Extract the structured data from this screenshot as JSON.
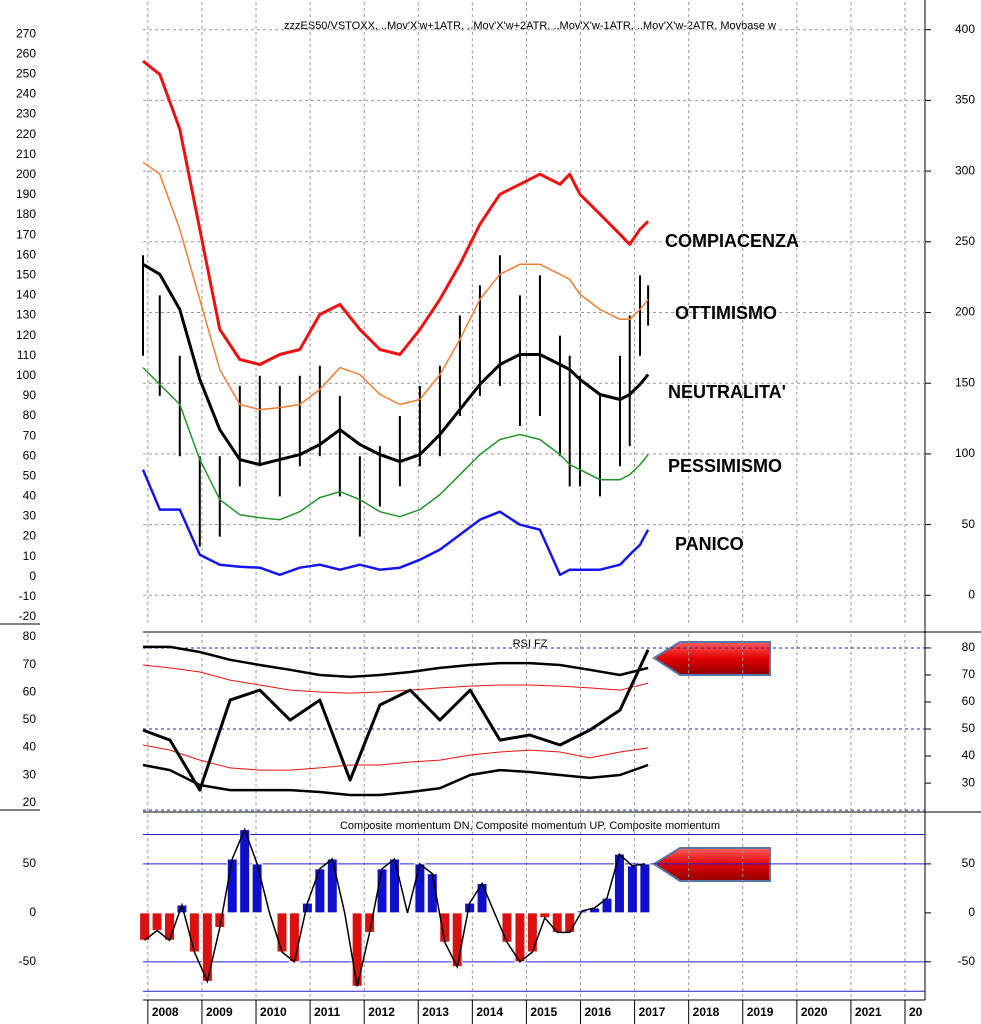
{
  "chart_data": [
    {
      "type": "line",
      "title": "zzzES50/VSTOXX, ..Mov'X'w+1ATR, ..Mov'X'w+2ATR, ..Mov'X'w-1ATR, ..Mov'X'w-2ATR, Movbase w",
      "x": [
        2007.91,
        2008.22,
        2008.59,
        2008.96,
        2009.33,
        2009.7,
        2010.07,
        2010.44,
        2010.81,
        2011.18,
        2011.55,
        2011.92,
        2012.29,
        2012.66,
        2013.03,
        2013.4,
        2013.77,
        2014.14,
        2014.51,
        2014.88,
        2015.25,
        2015.62,
        2015.8,
        2015.99,
        2016.36,
        2016.73,
        2016.91,
        2017.1,
        2017.25
      ],
      "series": [
        {
          "name": "COMPIACENZA",
          "color": "#ee1111",
          "values": [
            256.6,
            250,
            222.7,
            172.9,
            123.1,
            108.1,
            105.6,
            110.6,
            113.1,
            130.5,
            135.5,
            123.1,
            113.1,
            110.6,
            123.1,
            138.0,
            155.5,
            175.4,
            190.3,
            195.3,
            200.3,
            195.3,
            200.3,
            190.3,
            180.4,
            170.4,
            165.4,
            172.9,
            176.9
          ]
        },
        {
          "name": "OTTIMISMO",
          "color": "#f47c30",
          "values": [
            206.3,
            200.3,
            172.9,
            138.0,
            103.1,
            85.7,
            83.2,
            84.2,
            85.7,
            93.2,
            104.1,
            100.6,
            90.7,
            85.7,
            88.2,
            100.6,
            118.1,
            138.0,
            150.5,
            155.5,
            155.5,
            150.5,
            148.0,
            140.5,
            133.0,
            128.1,
            128.1,
            133.0,
            138.0
          ]
        },
        {
          "name": "NEUTRALITA'",
          "color": "#000000",
          "values": [
            155.5,
            150.5,
            133.0,
            98.2,
            73.2,
            58.3,
            55.8,
            58.3,
            60.8,
            65.8,
            73.2,
            65.8,
            60.8,
            57.3,
            60.8,
            70.8,
            83.2,
            95.7,
            105.6,
            110.6,
            110.6,
            105.6,
            103.1,
            98.2,
            90.7,
            88.2,
            90.7,
            95.7,
            100.6
          ]
        },
        {
          "name": "PESSIMISMO",
          "color": "#22952a",
          "values": [
            104.1,
            95.7,
            85.7,
            58.3,
            38.4,
            30.9,
            29.4,
            28.4,
            32.4,
            39.4,
            42.4,
            38.4,
            32.4,
            29.9,
            33.4,
            40.9,
            50.8,
            60.8,
            68.3,
            70.8,
            68.3,
            60.8,
            55.8,
            53.3,
            48.3,
            48.3,
            50.8,
            55.8,
            60.8
          ]
        },
        {
          "name": "PANICO",
          "color": "#1515ee",
          "values": [
            53.3,
            33.4,
            33.4,
            11.0,
            6.0,
            5.0,
            4.5,
            1.0,
            4.5,
            6.0,
            3.5,
            6.0,
            3.5,
            4.5,
            8.5,
            13.5,
            20.9,
            28.4,
            32.4,
            25.9,
            23.4,
            1.0,
            3.5,
            3.5,
            3.5,
            6.0,
            11.0,
            15.9,
            23.4
          ]
        }
      ],
      "bars": {
        "color": "#000000",
        "high": [
          160,
          140,
          110,
          60,
          60,
          95,
          100,
          95,
          100,
          105,
          90,
          60,
          65,
          80,
          95,
          105,
          130,
          145,
          160,
          140,
          150,
          120,
          110,
          100,
          90,
          110,
          130,
          150,
          145
        ],
        "low": [
          110,
          90,
          60,
          15,
          20,
          45,
          55,
          40,
          55,
          60,
          40,
          20,
          35,
          45,
          55,
          60,
          80,
          90,
          95,
          75,
          80,
          60,
          45,
          45,
          40,
          55,
          65,
          110,
          125
        ]
      },
      "ylim": [
        -24,
        287
      ],
      "yticks": [
        270,
        260,
        250,
        240,
        230,
        220,
        210,
        200,
        190,
        180,
        170,
        160,
        150,
        140,
        130,
        120,
        110,
        100,
        90,
        80,
        70,
        60,
        50,
        40,
        30,
        20,
        10,
        0,
        -10,
        -20
      ],
      "y2lim": [
        -21,
        421
      ],
      "y2ticks": [
        400,
        350,
        300,
        250,
        200,
        150,
        100,
        50,
        0
      ],
      "grid": true
    },
    {
      "type": "line",
      "title": "RSI FZ",
      "x": [
        2007.91,
        2008.41,
        2008.96,
        2009.52,
        2010.07,
        2010.63,
        2011.18,
        2011.74,
        2012.29,
        2012.85,
        2013.4,
        2013.96,
        2014.51,
        2015.06,
        2015.62,
        2016.17,
        2016.73,
        2017.25
      ],
      "series": [
        {
          "color": "#000000",
          "axis": "y2",
          "values": [
            80.4,
            80.4,
            78.5,
            75.6,
            73.7,
            71.9,
            70.0,
            69.3,
            70.0,
            71.1,
            72.6,
            73.7,
            74.4,
            74.4,
            73.7,
            71.9,
            70.0,
            72.6
          ]
        },
        {
          "color": "#ee1111",
          "axis": "y2",
          "values": [
            73.7,
            72.6,
            71.1,
            68.1,
            66.3,
            64.4,
            63.7,
            63.3,
            63.7,
            64.4,
            65.2,
            65.9,
            66.3,
            66.3,
            65.9,
            65.2,
            64.4,
            67.0
          ]
        },
        {
          "color": "#ee1111",
          "axis": "y2",
          "values": [
            44.1,
            42.2,
            38.5,
            35.6,
            34.8,
            34.8,
            35.6,
            36.7,
            36.7,
            37.8,
            38.5,
            40.4,
            41.5,
            42.2,
            41.5,
            39.3,
            41.5,
            43.0
          ]
        },
        {
          "color": "#000000",
          "axis": "y2",
          "values": [
            36.7,
            34.8,
            29.3,
            27.4,
            27.4,
            27.4,
            26.7,
            25.6,
            25.6,
            26.7,
            28.1,
            33.0,
            34.8,
            34.1,
            33.0,
            31.9,
            33.0,
            36.7
          ]
        },
        {
          "color": "#000000",
          "axis": "y2",
          "values": [
            49.6,
            45.9,
            27.4,
            60.7,
            64.4,
            53.3,
            60.7,
            31.1,
            58.9,
            64.4,
            53.3,
            64.4,
            45.9,
            47.8,
            44.1,
            49.6,
            57.0,
            79.3
          ]
        }
      ],
      "hlines": [
        80,
        50,
        20
      ],
      "hlines_axis": "y2",
      "hline_color": "#2222cc",
      "ylim": [
        16.7,
        81.8
      ],
      "yticks": [
        80,
        70,
        60,
        50,
        40,
        30,
        20
      ],
      "y2lim": [
        19.3,
        85.9
      ],
      "y2ticks": [
        80,
        70,
        60,
        50,
        40,
        30
      ],
      "grid": true
    },
    {
      "type": "bar",
      "title": "Composite momentum DN, Composite momentum UP, Composite momentum",
      "x": [
        2007.94,
        2008.17,
        2008.4,
        2008.63,
        2008.86,
        2009.1,
        2009.33,
        2009.56,
        2009.79,
        2010.02,
        2010.25,
        2010.48,
        2010.71,
        2010.95,
        2011.18,
        2011.41,
        2011.64,
        2011.87,
        2012.1,
        2012.33,
        2012.56,
        2012.8,
        2013.03,
        2013.26,
        2013.49,
        2013.72,
        2013.95,
        2014.18,
        2014.41,
        2014.64,
        2014.88,
        2015.11,
        2015.34,
        2015.57,
        2015.8,
        2016.03,
        2016.26,
        2016.49,
        2016.72,
        2016.96,
        2017.19
      ],
      "values": [
        -28,
        -18,
        -28,
        8,
        -40,
        -70,
        -15,
        55,
        85,
        50,
        0,
        -40,
        -50,
        10,
        45,
        55,
        0,
        -75,
        -20,
        45,
        55,
        0,
        50,
        40,
        -30,
        -55,
        10,
        30,
        0,
        -30,
        -50,
        -40,
        -5,
        -20,
        -20,
        2,
        5,
        15,
        60,
        48,
        50
      ],
      "up_color": "#1010cc",
      "down_color": "#dd1010",
      "line_color": "#000000",
      "hlines": [
        80,
        50,
        -50,
        -80
      ],
      "hline_color": "#2222cc",
      "ylim": [
        -89,
        103
      ],
      "yticks": [
        50,
        0,
        -50
      ],
      "y2lim": [
        -89,
        103
      ],
      "y2ticks": [
        50,
        0,
        -50
      ],
      "xlim": [
        2007.91,
        2022.37
      ],
      "xticks": [
        2008,
        2009,
        2010,
        2011,
        2012,
        2013,
        2014,
        2015,
        2016,
        2017,
        2018,
        2019,
        2020,
        2021,
        {
          "value": 2022,
          "label": "20"
        }
      ],
      "grid": true
    }
  ]
}
